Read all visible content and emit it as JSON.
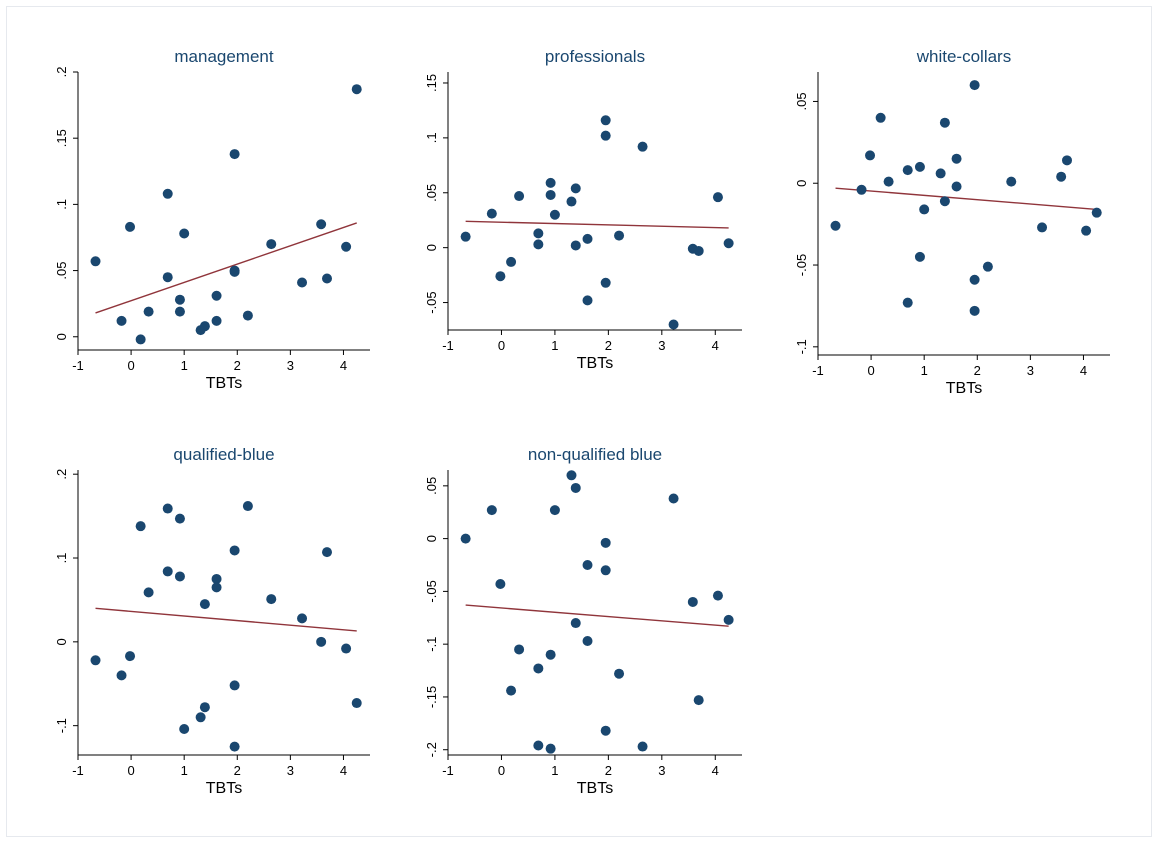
{
  "colors": {
    "marker": "#1a476f",
    "fit_line": "#90353b",
    "title": "#1a476f",
    "axis": "#000000"
  },
  "chart_data": [
    {
      "type": "scatter",
      "title": "management",
      "xlabel": "TBTs",
      "ylabel": "",
      "xlim": [
        -1,
        4.5
      ],
      "ylim": [
        -0.01,
        0.2
      ],
      "xticks": [
        -1,
        0,
        1,
        2,
        3,
        4
      ],
      "xtick_labels": [
        "-1",
        "0",
        "1",
        "2",
        "3",
        "4"
      ],
      "yticks": [
        0,
        0.05,
        0.1,
        0.15,
        0.2
      ],
      "ytick_labels": [
        "0",
        ".05",
        ".1",
        ".15",
        ".2"
      ],
      "grid": false,
      "points": [
        [
          -0.67,
          0.057
        ],
        [
          -0.18,
          0.012
        ],
        [
          -0.02,
          0.083
        ],
        [
          0.18,
          -0.002
        ],
        [
          0.33,
          0.019
        ],
        [
          0.69,
          0.108
        ],
        [
          0.69,
          0.045
        ],
        [
          0.92,
          0.028
        ],
        [
          0.92,
          0.019
        ],
        [
          1.0,
          0.078
        ],
        [
          1.31,
          0.005
        ],
        [
          1.39,
          0.008
        ],
        [
          1.61,
          0.031
        ],
        [
          1.61,
          0.012
        ],
        [
          1.95,
          0.138
        ],
        [
          1.95,
          0.05
        ],
        [
          1.95,
          0.049
        ],
        [
          2.2,
          0.016
        ],
        [
          2.64,
          0.07
        ],
        [
          3.22,
          0.041
        ],
        [
          3.58,
          0.085
        ],
        [
          3.69,
          0.044
        ],
        [
          4.05,
          0.068
        ],
        [
          4.25,
          0.187
        ]
      ],
      "fit": [
        [
          -0.67,
          0.018
        ],
        [
          4.25,
          0.086
        ]
      ]
    },
    {
      "type": "scatter",
      "title": "professionals",
      "xlabel": "TBTs",
      "ylabel": "",
      "xlim": [
        -1,
        4.5
      ],
      "ylim": [
        -0.075,
        0.16
      ],
      "xticks": [
        -1,
        0,
        1,
        2,
        3,
        4
      ],
      "xtick_labels": [
        "-1",
        "0",
        "1",
        "2",
        "3",
        "4"
      ],
      "yticks": [
        -0.05,
        0,
        0.05,
        0.1,
        0.15
      ],
      "ytick_labels": [
        "-.05",
        "0",
        ".05",
        ".1",
        ".15"
      ],
      "grid": false,
      "points": [
        [
          -0.67,
          0.01
        ],
        [
          -0.18,
          0.031
        ],
        [
          -0.02,
          -0.026
        ],
        [
          0.18,
          -0.013
        ],
        [
          0.33,
          0.047
        ],
        [
          0.69,
          0.013
        ],
        [
          0.69,
          0.003
        ],
        [
          0.92,
          0.059
        ],
        [
          0.92,
          0.048
        ],
        [
          1.0,
          0.03
        ],
        [
          1.31,
          0.042
        ],
        [
          1.39,
          0.054
        ],
        [
          1.39,
          0.002
        ],
        [
          1.61,
          0.008
        ],
        [
          1.61,
          -0.048
        ],
        [
          1.95,
          0.116
        ],
        [
          1.95,
          0.102
        ],
        [
          1.95,
          -0.032
        ],
        [
          2.2,
          0.011
        ],
        [
          2.64,
          0.092
        ],
        [
          3.22,
          -0.07
        ],
        [
          3.58,
          -0.001
        ],
        [
          3.69,
          -0.003
        ],
        [
          4.05,
          0.046
        ],
        [
          4.25,
          0.004
        ]
      ],
      "fit": [
        [
          -0.67,
          0.024
        ],
        [
          4.25,
          0.018
        ]
      ]
    },
    {
      "type": "scatter",
      "title": "white-collars",
      "xlabel": "TBTs",
      "ylabel": "",
      "xlim": [
        -1,
        4.5
      ],
      "ylim": [
        -0.105,
        0.068
      ],
      "xticks": [
        -1,
        0,
        1,
        2,
        3,
        4
      ],
      "xtick_labels": [
        "-1",
        "0",
        "1",
        "2",
        "3",
        "4"
      ],
      "yticks": [
        -0.1,
        -0.05,
        0,
        0.05
      ],
      "ytick_labels": [
        "-.1",
        "-.05",
        "0",
        ".05"
      ],
      "grid": false,
      "points": [
        [
          -0.67,
          -0.026
        ],
        [
          -0.18,
          -0.004
        ],
        [
          -0.02,
          0.017
        ],
        [
          0.18,
          0.04
        ],
        [
          0.33,
          0.001
        ],
        [
          0.69,
          0.008
        ],
        [
          0.69,
          -0.073
        ],
        [
          0.92,
          0.01
        ],
        [
          0.92,
          -0.045
        ],
        [
          1.0,
          -0.016
        ],
        [
          1.31,
          0.006
        ],
        [
          1.39,
          0.037
        ],
        [
          1.39,
          -0.011
        ],
        [
          1.61,
          0.015
        ],
        [
          1.61,
          -0.002
        ],
        [
          1.95,
          0.06
        ],
        [
          1.95,
          -0.059
        ],
        [
          1.95,
          -0.078
        ],
        [
          2.2,
          -0.051
        ],
        [
          2.64,
          0.001
        ],
        [
          3.22,
          -0.027
        ],
        [
          3.58,
          0.004
        ],
        [
          3.69,
          0.014
        ],
        [
          4.05,
          -0.029
        ],
        [
          4.25,
          -0.018
        ]
      ],
      "fit": [
        [
          -0.67,
          -0.003
        ],
        [
          4.25,
          -0.016
        ]
      ]
    },
    {
      "type": "scatter",
      "title": "qualified-blue",
      "xlabel": "TBTs",
      "ylabel": "",
      "xlim": [
        -1,
        4.5
      ],
      "ylim": [
        -0.135,
        0.205
      ],
      "xticks": [
        -1,
        0,
        1,
        2,
        3,
        4
      ],
      "xtick_labels": [
        "-1",
        "0",
        "1",
        "2",
        "3",
        "4"
      ],
      "yticks": [
        -0.1,
        0,
        0.1,
        0.2
      ],
      "ytick_labels": [
        "-.1",
        "0",
        ".1",
        ".2"
      ],
      "grid": false,
      "points": [
        [
          -0.67,
          -0.022
        ],
        [
          -0.18,
          -0.04
        ],
        [
          -0.02,
          -0.017
        ],
        [
          0.18,
          0.138
        ],
        [
          0.33,
          0.059
        ],
        [
          0.69,
          0.159
        ],
        [
          0.69,
          0.084
        ],
        [
          0.92,
          0.147
        ],
        [
          0.92,
          0.078
        ],
        [
          1.0,
          -0.104
        ],
        [
          1.31,
          -0.09
        ],
        [
          1.39,
          -0.078
        ],
        [
          1.39,
          0.045
        ],
        [
          1.61,
          0.075
        ],
        [
          1.61,
          0.065
        ],
        [
          1.95,
          0.109
        ],
        [
          1.95,
          -0.052
        ],
        [
          1.95,
          -0.125
        ],
        [
          2.2,
          0.162
        ],
        [
          2.64,
          0.051
        ],
        [
          3.22,
          0.028
        ],
        [
          3.58,
          0.0
        ],
        [
          3.69,
          0.107
        ],
        [
          4.05,
          -0.008
        ],
        [
          4.25,
          -0.073
        ]
      ],
      "fit": [
        [
          -0.67,
          0.04
        ],
        [
          4.25,
          0.013
        ]
      ]
    },
    {
      "type": "scatter",
      "title": "non-qualified blue",
      "xlabel": "TBTs",
      "ylabel": "",
      "xlim": [
        -1,
        4.5
      ],
      "ylim": [
        -0.205,
        0.065
      ],
      "xticks": [
        -1,
        0,
        1,
        2,
        3,
        4
      ],
      "xtick_labels": [
        "-1",
        "0",
        "1",
        "2",
        "3",
        "4"
      ],
      "yticks": [
        -0.2,
        -0.15,
        -0.1,
        -0.05,
        0,
        0.05
      ],
      "ytick_labels": [
        "-.2",
        "-.15",
        "-.1",
        "-.05",
        "0",
        ".05"
      ],
      "grid": false,
      "points": [
        [
          -0.67,
          0.0
        ],
        [
          -0.18,
          0.027
        ],
        [
          -0.02,
          -0.043
        ],
        [
          0.18,
          -0.144
        ],
        [
          0.33,
          -0.105
        ],
        [
          0.69,
          -0.123
        ],
        [
          0.69,
          -0.196
        ],
        [
          0.92,
          -0.11
        ],
        [
          0.92,
          -0.199
        ],
        [
          1.0,
          0.027
        ],
        [
          1.31,
          0.06
        ],
        [
          1.39,
          0.048
        ],
        [
          1.39,
          -0.08
        ],
        [
          1.61,
          -0.025
        ],
        [
          1.61,
          -0.097
        ],
        [
          1.95,
          -0.004
        ],
        [
          1.95,
          -0.03
        ],
        [
          1.95,
          -0.182
        ],
        [
          2.2,
          -0.128
        ],
        [
          2.64,
          -0.197
        ],
        [
          3.22,
          0.038
        ],
        [
          3.58,
          -0.06
        ],
        [
          3.69,
          -0.153
        ],
        [
          4.05,
          -0.054
        ],
        [
          4.25,
          -0.077
        ]
      ],
      "fit": [
        [
          -0.67,
          -0.063
        ],
        [
          4.25,
          -0.083
        ]
      ]
    }
  ]
}
